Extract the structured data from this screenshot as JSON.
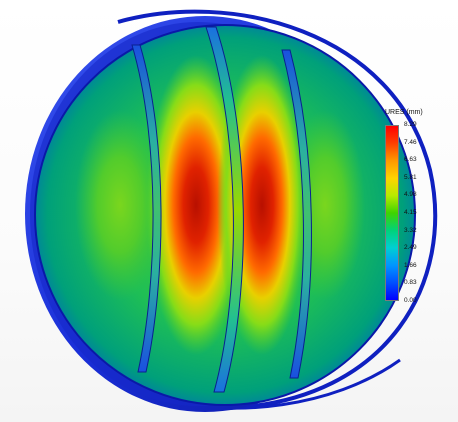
{
  "legend": {
    "title": "URES (mm)",
    "ticks": [
      "8.29",
      "7.46",
      "6.63",
      "5.81",
      "4.98",
      "4.15",
      "3.32",
      "2.49",
      "1.66",
      "0.83",
      "0.00"
    ],
    "colors": [
      "#ff0000",
      "#ff4000",
      "#ff9900",
      "#ffd400",
      "#b8ea00",
      "#3ed400",
      "#00d27a",
      "#00cfd2",
      "#0096ff",
      "#0050ff",
      "#0000ff"
    ]
  },
  "model": {
    "name": "disc-displacement-contour",
    "colors": {
      "rim": "#1a2fd8",
      "rim_dark": "#0a16a0",
      "rim_light": "#3a55f0",
      "max": "#b81000",
      "high": "#ff3a00",
      "mid_high": "#e6c800",
      "mid": "#4fcf2a",
      "low": "#00c070",
      "low_edge": "#0070d0"
    }
  }
}
